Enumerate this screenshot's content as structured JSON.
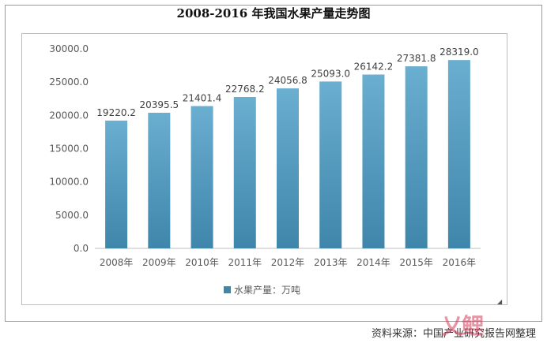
{
  "chart_data": {
    "type": "bar",
    "title": "2008-2016 年我国水果产量走势图",
    "categories": [
      "2008年",
      "2009年",
      "2010年",
      "2011年",
      "2012年",
      "2013年",
      "2014年",
      "2015年",
      "2016年"
    ],
    "series": [
      {
        "name": "水果产量：万吨",
        "values": [
          19220.2,
          20395.5,
          21401.4,
          22768.2,
          24056.8,
          25093.0,
          26142.2,
          27381.8,
          28319.0
        ],
        "value_labels": [
          "19220.2",
          "20395.5",
          "21401.4",
          "22768.2",
          "24056.8",
          "25093.0",
          "26142.2",
          "27381.8",
          "28319.0"
        ]
      }
    ],
    "ylim": [
      0,
      30000
    ],
    "y_ticks": [
      0,
      5000,
      10000,
      15000,
      20000,
      25000,
      30000
    ],
    "y_tick_labels": [
      "0.0",
      "5000.0",
      "10000.0",
      "15000.0",
      "20000.0",
      "25000.0",
      "30000.0"
    ],
    "xlabel": "",
    "ylabel": "",
    "grid": false,
    "legend": "bottom",
    "colors": {
      "bar_top": "#6aaed0",
      "bar_bottom": "#3f86ab",
      "axis": "#bfbfbf",
      "text": "#595959"
    }
  },
  "source": {
    "label": "资料来源：",
    "org": "中国产业研究报告网整理"
  }
}
